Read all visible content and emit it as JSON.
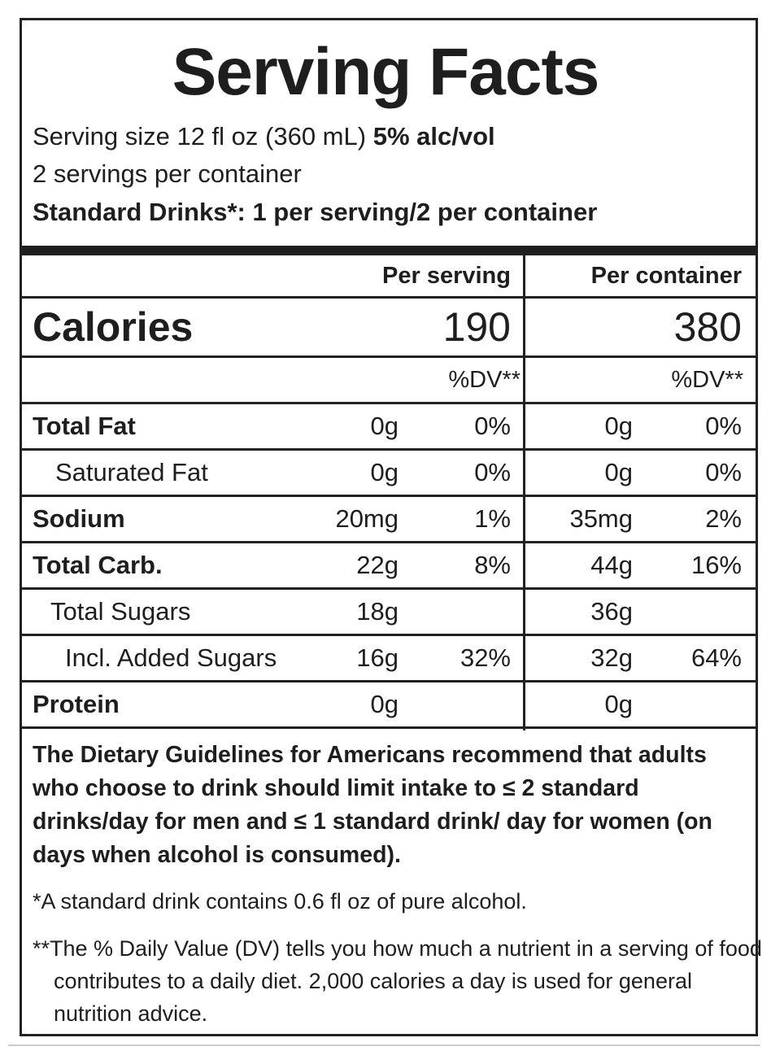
{
  "title": "Serving Facts",
  "serving_size": {
    "text": "Serving size 12 fl oz (360 mL)",
    "abv": "5% alc/vol"
  },
  "servings_per_container": "2 servings per container",
  "standard_drinks": "Standard Drinks*: 1 per serving/2 per container",
  "table": {
    "header": [
      "Per serving",
      "Per container"
    ],
    "calories": {
      "label": "Calories",
      "per_serving": "190",
      "per_container": "380"
    },
    "dv_header": [
      "%DV**",
      "%DV**"
    ],
    "rows": [
      [
        "Total Fat",
        "0g",
        "0%",
        "0g",
        "0%"
      ],
      [
        "Saturated Fat",
        "0g",
        "0%",
        "0g",
        "0%"
      ],
      [
        "Sodium",
        "20mg",
        "1%",
        "35mg",
        "2%"
      ],
      [
        "Total Carb.",
        "22g",
        "8%",
        "44g",
        "16%"
      ],
      [
        "Total Sugars",
        "18g",
        null,
        "36g",
        null
      ],
      [
        "Incl. Added Sugars",
        "16g",
        "32%",
        "32g",
        "64%"
      ],
      [
        "Protein",
        "0g",
        null,
        "0g",
        null
      ]
    ]
  },
  "guideline": "The Dietary Guidelines for Americans recommend that adults who choose to drink should limit intake to ≤ 2 standard drinks/day for men and ≤ 1 standard drink/ day for women (on days when alcohol is consumed).",
  "footnotes": [
    "*A standard drink contains 0.6 fl oz of pure alcohol.",
    "**The % Daily Value (DV) tells you how much a nutrient in a serving of food contributes to a daily diet. 2,000 calories a day is used for general nutrition advice."
  ]
}
